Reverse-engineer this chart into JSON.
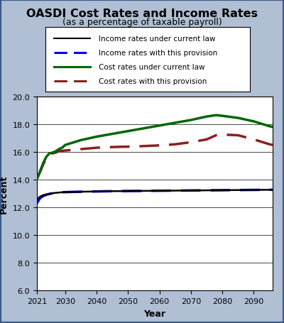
{
  "title": "OASDI Cost Rates and Income Rates",
  "subtitle": "(as a percentage of taxable payroll)",
  "xlabel": "Year",
  "ylabel": "Percent",
  "xlim": [
    2021,
    2096
  ],
  "ylim": [
    6.0,
    20.0
  ],
  "yticks": [
    6.0,
    8.0,
    10.0,
    12.0,
    14.0,
    16.0,
    18.0,
    20.0
  ],
  "xticks": [
    2021,
    2030,
    2040,
    2050,
    2060,
    2070,
    2080,
    2090
  ],
  "background_color": "#b0bfd4",
  "plot_bg_color": "#ffffff",
  "legend_entries": [
    "Income rates under current law",
    "Income rates with this provision",
    "Cost rates under current law",
    "Cost rates with this provision"
  ],
  "income_current_law_x": [
    2021,
    2022,
    2023,
    2024,
    2025,
    2026,
    2027,
    2028,
    2029,
    2030,
    2035,
    2040,
    2045,
    2050,
    2055,
    2060,
    2065,
    2070,
    2075,
    2080,
    2085,
    2090,
    2095,
    2096
  ],
  "income_current_law_y": [
    12.55,
    12.78,
    12.88,
    12.94,
    12.98,
    13.02,
    13.05,
    13.07,
    13.09,
    13.1,
    13.13,
    13.15,
    13.17,
    13.18,
    13.19,
    13.2,
    13.21,
    13.22,
    13.23,
    13.24,
    13.25,
    13.26,
    13.27,
    13.27
  ],
  "income_provision_x": [
    2021,
    2022,
    2023,
    2024,
    2025,
    2026,
    2027,
    2028,
    2029,
    2030,
    2035,
    2040,
    2045,
    2050,
    2055,
    2060,
    2065,
    2070,
    2075,
    2080,
    2085,
    2090,
    2095,
    2096
  ],
  "income_provision_y": [
    12.3,
    12.67,
    12.82,
    12.91,
    12.97,
    13.02,
    13.05,
    13.07,
    13.09,
    13.1,
    13.13,
    13.15,
    13.17,
    13.18,
    13.19,
    13.2,
    13.21,
    13.22,
    13.23,
    13.24,
    13.25,
    13.26,
    13.27,
    13.27
  ],
  "cost_current_law_x": [
    2021,
    2022,
    2023,
    2024,
    2025,
    2026,
    2027,
    2028,
    2029,
    2030,
    2035,
    2040,
    2045,
    2050,
    2055,
    2060,
    2065,
    2070,
    2075,
    2078,
    2080,
    2085,
    2090,
    2095,
    2096
  ],
  "cost_current_law_y": [
    14.05,
    14.6,
    15.2,
    15.65,
    15.9,
    15.95,
    16.05,
    16.2,
    16.3,
    16.5,
    16.85,
    17.1,
    17.3,
    17.5,
    17.7,
    17.9,
    18.1,
    18.3,
    18.55,
    18.65,
    18.6,
    18.45,
    18.2,
    17.85,
    17.8
  ],
  "cost_provision_x": [
    2021,
    2022,
    2023,
    2024,
    2025,
    2026,
    2027,
    2028,
    2029,
    2030,
    2035,
    2040,
    2045,
    2050,
    2055,
    2060,
    2065,
    2070,
    2075,
    2078,
    2080,
    2085,
    2090,
    2095,
    2096
  ],
  "cost_provision_y": [
    14.05,
    14.55,
    15.1,
    15.55,
    15.8,
    15.9,
    15.95,
    16.05,
    16.08,
    16.1,
    16.2,
    16.3,
    16.35,
    16.38,
    16.42,
    16.47,
    16.55,
    16.7,
    16.9,
    17.2,
    17.25,
    17.2,
    16.9,
    16.55,
    16.5
  ],
  "income_current_color": "#000000",
  "income_provision_color": "#0000ee",
  "cost_current_color": "#006600",
  "cost_provision_color": "#8b2020"
}
